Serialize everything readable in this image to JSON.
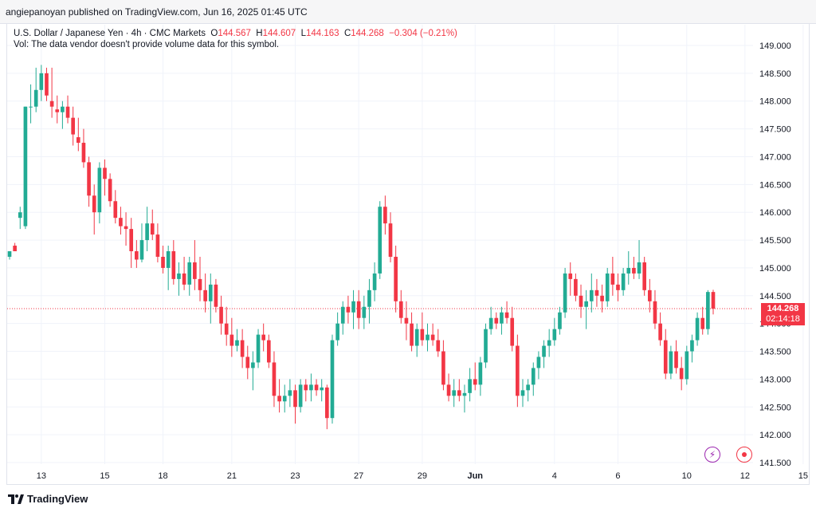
{
  "header": {
    "publish_line": "angiepanoyan published on TradingView.com, Jun 16, 2025 01:45 UTC"
  },
  "legend": {
    "symbol": "U.S. Dollar / Japanese Yen · 4h · CMC Markets",
    "o_label": "O",
    "o": "144.567",
    "h_label": "H",
    "h": "144.607",
    "l_label": "L",
    "l": "144.163",
    "c_label": "C",
    "c": "144.268",
    "change": "−0.304 (−0.21%)",
    "volume_note": "Vol: The data vendor doesn't provide volume data for this symbol."
  },
  "price_label": {
    "price": "144.268",
    "countdown": "02:14:18"
  },
  "footer": {
    "brand": "TradingView"
  },
  "icons": {
    "flash": "flash-icon",
    "record": "record-icon"
  },
  "colors": {
    "up": "#22ab94",
    "down": "#f23645",
    "grid": "#f0f3fa",
    "text": "#131722"
  },
  "chart_data": {
    "type": "candlestick",
    "title": "U.S. Dollar / Japanese Yen · 4h · CMC Markets",
    "ylim": [
      141.5,
      149.25
    ],
    "y_ticks": [
      "149.000",
      "148.500",
      "148.000",
      "147.500",
      "147.000",
      "146.500",
      "146.000",
      "145.500",
      "145.000",
      "144.500",
      "144.000",
      "143.500",
      "143.000",
      "142.500",
      "142.000",
      "141.500"
    ],
    "x_ticks": [
      {
        "label": "13",
        "idx": 6
      },
      {
        "label": "15",
        "idx": 18
      },
      {
        "label": "18",
        "idx": 29
      },
      {
        "label": "21",
        "idx": 42
      },
      {
        "label": "23",
        "idx": 54
      },
      {
        "label": "27",
        "idx": 66
      },
      {
        "label": "29",
        "idx": 78
      },
      {
        "label": "Jun",
        "idx": 88
      },
      {
        "label": "4",
        "idx": 103
      },
      {
        "label": "6",
        "idx": 115
      },
      {
        "label": "10",
        "idx": 128
      },
      {
        "label": "12",
        "idx": 139
      },
      {
        "label": "15",
        "idx": 150
      }
    ],
    "last_price": 144.268,
    "candles": [
      [
        145.2,
        145.25,
        145.15,
        145.3
      ],
      [
        145.4,
        145.45,
        145.35,
        145.3
      ],
      [
        145.9,
        146.1,
        145.7,
        146.0
      ],
      [
        145.75,
        147.9,
        145.7,
        147.9
      ],
      [
        147.9,
        148.3,
        147.6,
        147.9
      ],
      [
        147.9,
        148.6,
        147.8,
        148.2
      ],
      [
        148.2,
        148.65,
        148.0,
        148.5
      ],
      [
        148.5,
        148.6,
        148.0,
        148.1
      ],
      [
        148.0,
        148.6,
        147.7,
        147.9
      ],
      [
        147.85,
        148.1,
        147.6,
        147.8
      ],
      [
        147.8,
        148.0,
        147.5,
        147.9
      ],
      [
        147.9,
        148.1,
        147.6,
        147.7
      ],
      [
        147.7,
        147.9,
        147.2,
        147.4
      ],
      [
        147.35,
        147.7,
        147.1,
        147.25
      ],
      [
        147.25,
        147.5,
        146.8,
        146.9
      ],
      [
        146.9,
        147.0,
        146.1,
        146.3
      ],
      [
        146.3,
        146.5,
        145.6,
        146.0
      ],
      [
        146.0,
        146.9,
        145.8,
        146.8
      ],
      [
        146.8,
        146.95,
        146.3,
        146.6
      ],
      [
        146.6,
        146.7,
        146.1,
        146.2
      ],
      [
        146.2,
        146.4,
        145.8,
        145.9
      ],
      [
        145.9,
        146.1,
        145.6,
        145.75
      ],
      [
        145.75,
        146.0,
        145.4,
        145.7
      ],
      [
        145.7,
        145.9,
        145.0,
        145.3
      ],
      [
        145.3,
        145.5,
        145.0,
        145.15
      ],
      [
        145.15,
        145.8,
        145.1,
        145.5
      ],
      [
        145.5,
        146.1,
        145.3,
        145.8
      ],
      [
        145.8,
        146.05,
        145.5,
        145.6
      ],
      [
        145.6,
        145.8,
        145.1,
        145.2
      ],
      [
        145.2,
        145.4,
        144.9,
        145.0
      ],
      [
        145.0,
        145.4,
        144.6,
        145.3
      ],
      [
        145.3,
        145.5,
        144.7,
        144.8
      ],
      [
        144.8,
        145.1,
        144.5,
        144.9
      ],
      [
        144.9,
        145.2,
        144.6,
        144.7
      ],
      [
        144.7,
        145.2,
        144.5,
        145.1
      ],
      [
        145.1,
        145.5,
        144.6,
        144.8
      ],
      [
        144.8,
        145.2,
        144.4,
        144.6
      ],
      [
        144.6,
        144.9,
        144.2,
        144.4
      ],
      [
        144.4,
        144.9,
        144.0,
        144.7
      ],
      [
        144.7,
        144.8,
        144.2,
        144.3
      ],
      [
        144.3,
        144.5,
        143.8,
        144.0
      ],
      [
        144.0,
        144.3,
        143.6,
        143.8
      ],
      [
        143.8,
        144.1,
        143.4,
        143.6
      ],
      [
        143.6,
        143.9,
        143.5,
        143.7
      ],
      [
        143.7,
        143.9,
        143.2,
        143.4
      ],
      [
        143.4,
        143.6,
        143.0,
        143.2
      ],
      [
        143.2,
        143.5,
        142.8,
        143.3
      ],
      [
        143.3,
        143.9,
        143.2,
        143.8
      ],
      [
        143.8,
        144.0,
        143.5,
        143.7
      ],
      [
        143.7,
        143.8,
        143.2,
        143.3
      ],
      [
        143.3,
        143.5,
        142.5,
        142.7
      ],
      [
        142.7,
        143.0,
        142.4,
        142.6
      ],
      [
        142.6,
        142.9,
        142.4,
        142.7
      ],
      [
        142.7,
        143.0,
        142.5,
        142.8
      ],
      [
        142.8,
        142.9,
        142.2,
        142.5
      ],
      [
        142.5,
        143.0,
        142.4,
        142.9
      ],
      [
        142.9,
        143.0,
        142.6,
        142.8
      ],
      [
        142.8,
        143.1,
        142.6,
        142.9
      ],
      [
        142.9,
        143.0,
        142.7,
        142.8
      ],
      [
        142.8,
        143.0,
        142.6,
        142.85
      ],
      [
        142.85,
        142.9,
        142.1,
        142.3
      ],
      [
        142.3,
        143.8,
        142.2,
        143.7
      ],
      [
        143.7,
        144.2,
        143.6,
        144.0
      ],
      [
        144.0,
        144.4,
        143.8,
        144.3
      ],
      [
        144.3,
        144.5,
        144.0,
        144.2
      ],
      [
        144.2,
        144.6,
        143.9,
        144.4
      ],
      [
        144.4,
        144.6,
        143.9,
        144.1
      ],
      [
        144.1,
        144.5,
        143.9,
        144.3
      ],
      [
        144.3,
        144.8,
        144.0,
        144.6
      ],
      [
        144.6,
        145.1,
        144.4,
        144.9
      ],
      [
        144.9,
        146.2,
        144.8,
        146.1
      ],
      [
        146.1,
        146.3,
        145.6,
        145.8
      ],
      [
        145.8,
        146.0,
        145.1,
        145.2
      ],
      [
        145.2,
        145.4,
        144.2,
        144.4
      ],
      [
        144.4,
        144.6,
        144.0,
        144.1
      ],
      [
        144.1,
        144.4,
        143.7,
        144.0
      ],
      [
        144.0,
        144.2,
        143.5,
        143.6
      ],
      [
        143.6,
        144.0,
        143.4,
        143.9
      ],
      [
        143.9,
        144.2,
        143.6,
        143.7
      ],
      [
        143.7,
        144.0,
        143.5,
        143.8
      ],
      [
        143.8,
        144.0,
        143.6,
        143.7
      ],
      [
        143.7,
        143.9,
        143.4,
        143.5
      ],
      [
        143.5,
        143.7,
        142.8,
        142.9
      ],
      [
        142.9,
        143.1,
        142.6,
        142.7
      ],
      [
        142.7,
        143.0,
        142.5,
        142.8
      ],
      [
        142.8,
        143.0,
        142.6,
        142.7
      ],
      [
        142.7,
        142.9,
        142.4,
        142.75
      ],
      [
        142.75,
        143.2,
        142.6,
        143.0
      ],
      [
        143.0,
        143.3,
        142.8,
        142.9
      ],
      [
        142.9,
        143.4,
        142.7,
        143.3
      ],
      [
        143.3,
        144.0,
        143.2,
        143.9
      ],
      [
        143.9,
        144.3,
        143.8,
        144.1
      ],
      [
        144.1,
        144.2,
        143.9,
        144.0
      ],
      [
        144.0,
        144.3,
        143.8,
        144.2
      ],
      [
        144.2,
        144.4,
        144.0,
        144.1
      ],
      [
        144.1,
        144.3,
        143.5,
        143.6
      ],
      [
        143.6,
        143.8,
        142.5,
        142.7
      ],
      [
        142.7,
        143.0,
        142.5,
        142.8
      ],
      [
        142.8,
        143.0,
        142.6,
        142.9
      ],
      [
        142.9,
        143.3,
        142.7,
        143.2
      ],
      [
        143.2,
        143.5,
        143.0,
        143.4
      ],
      [
        143.4,
        143.7,
        143.2,
        143.6
      ],
      [
        143.6,
        143.9,
        143.4,
        143.7
      ],
      [
        143.7,
        144.1,
        143.6,
        143.9
      ],
      [
        143.9,
        144.3,
        143.8,
        144.2
      ],
      [
        144.2,
        145.0,
        144.1,
        144.9
      ],
      [
        144.9,
        145.1,
        144.5,
        144.8
      ],
      [
        144.8,
        144.9,
        144.4,
        144.5
      ],
      [
        144.5,
        144.7,
        144.1,
        144.3
      ],
      [
        144.3,
        144.6,
        143.9,
        144.4
      ],
      [
        144.4,
        144.9,
        144.2,
        144.6
      ],
      [
        144.6,
        144.8,
        144.3,
        144.5
      ],
      [
        144.5,
        144.7,
        144.2,
        144.4
      ],
      [
        144.4,
        145.0,
        144.3,
        144.9
      ],
      [
        144.9,
        145.2,
        144.5,
        144.7
      ],
      [
        144.7,
        144.9,
        144.4,
        144.6
      ],
      [
        144.6,
        145.0,
        144.5,
        144.9
      ],
      [
        144.9,
        145.3,
        144.7,
        145.0
      ],
      [
        145.0,
        145.2,
        144.8,
        144.9
      ],
      [
        144.9,
        145.5,
        144.8,
        145.1
      ],
      [
        145.1,
        145.2,
        144.5,
        144.6
      ],
      [
        144.6,
        144.8,
        144.2,
        144.4
      ],
      [
        144.4,
        144.6,
        143.9,
        144.0
      ],
      [
        144.0,
        144.2,
        143.6,
        143.7
      ],
      [
        143.7,
        143.9,
        143.0,
        143.1
      ],
      [
        143.1,
        143.6,
        143.0,
        143.5
      ],
      [
        143.5,
        143.7,
        143.1,
        143.2
      ],
      [
        143.2,
        143.4,
        142.8,
        143.0
      ],
      [
        143.0,
        143.6,
        142.9,
        143.5
      ],
      [
        143.5,
        143.8,
        143.3,
        143.7
      ],
      [
        143.7,
        144.2,
        143.6,
        144.1
      ],
      [
        144.1,
        144.3,
        143.8,
        143.9
      ],
      [
        143.9,
        144.6,
        143.8,
        144.567
      ],
      [
        144.567,
        144.607,
        144.163,
        144.268
      ]
    ]
  }
}
